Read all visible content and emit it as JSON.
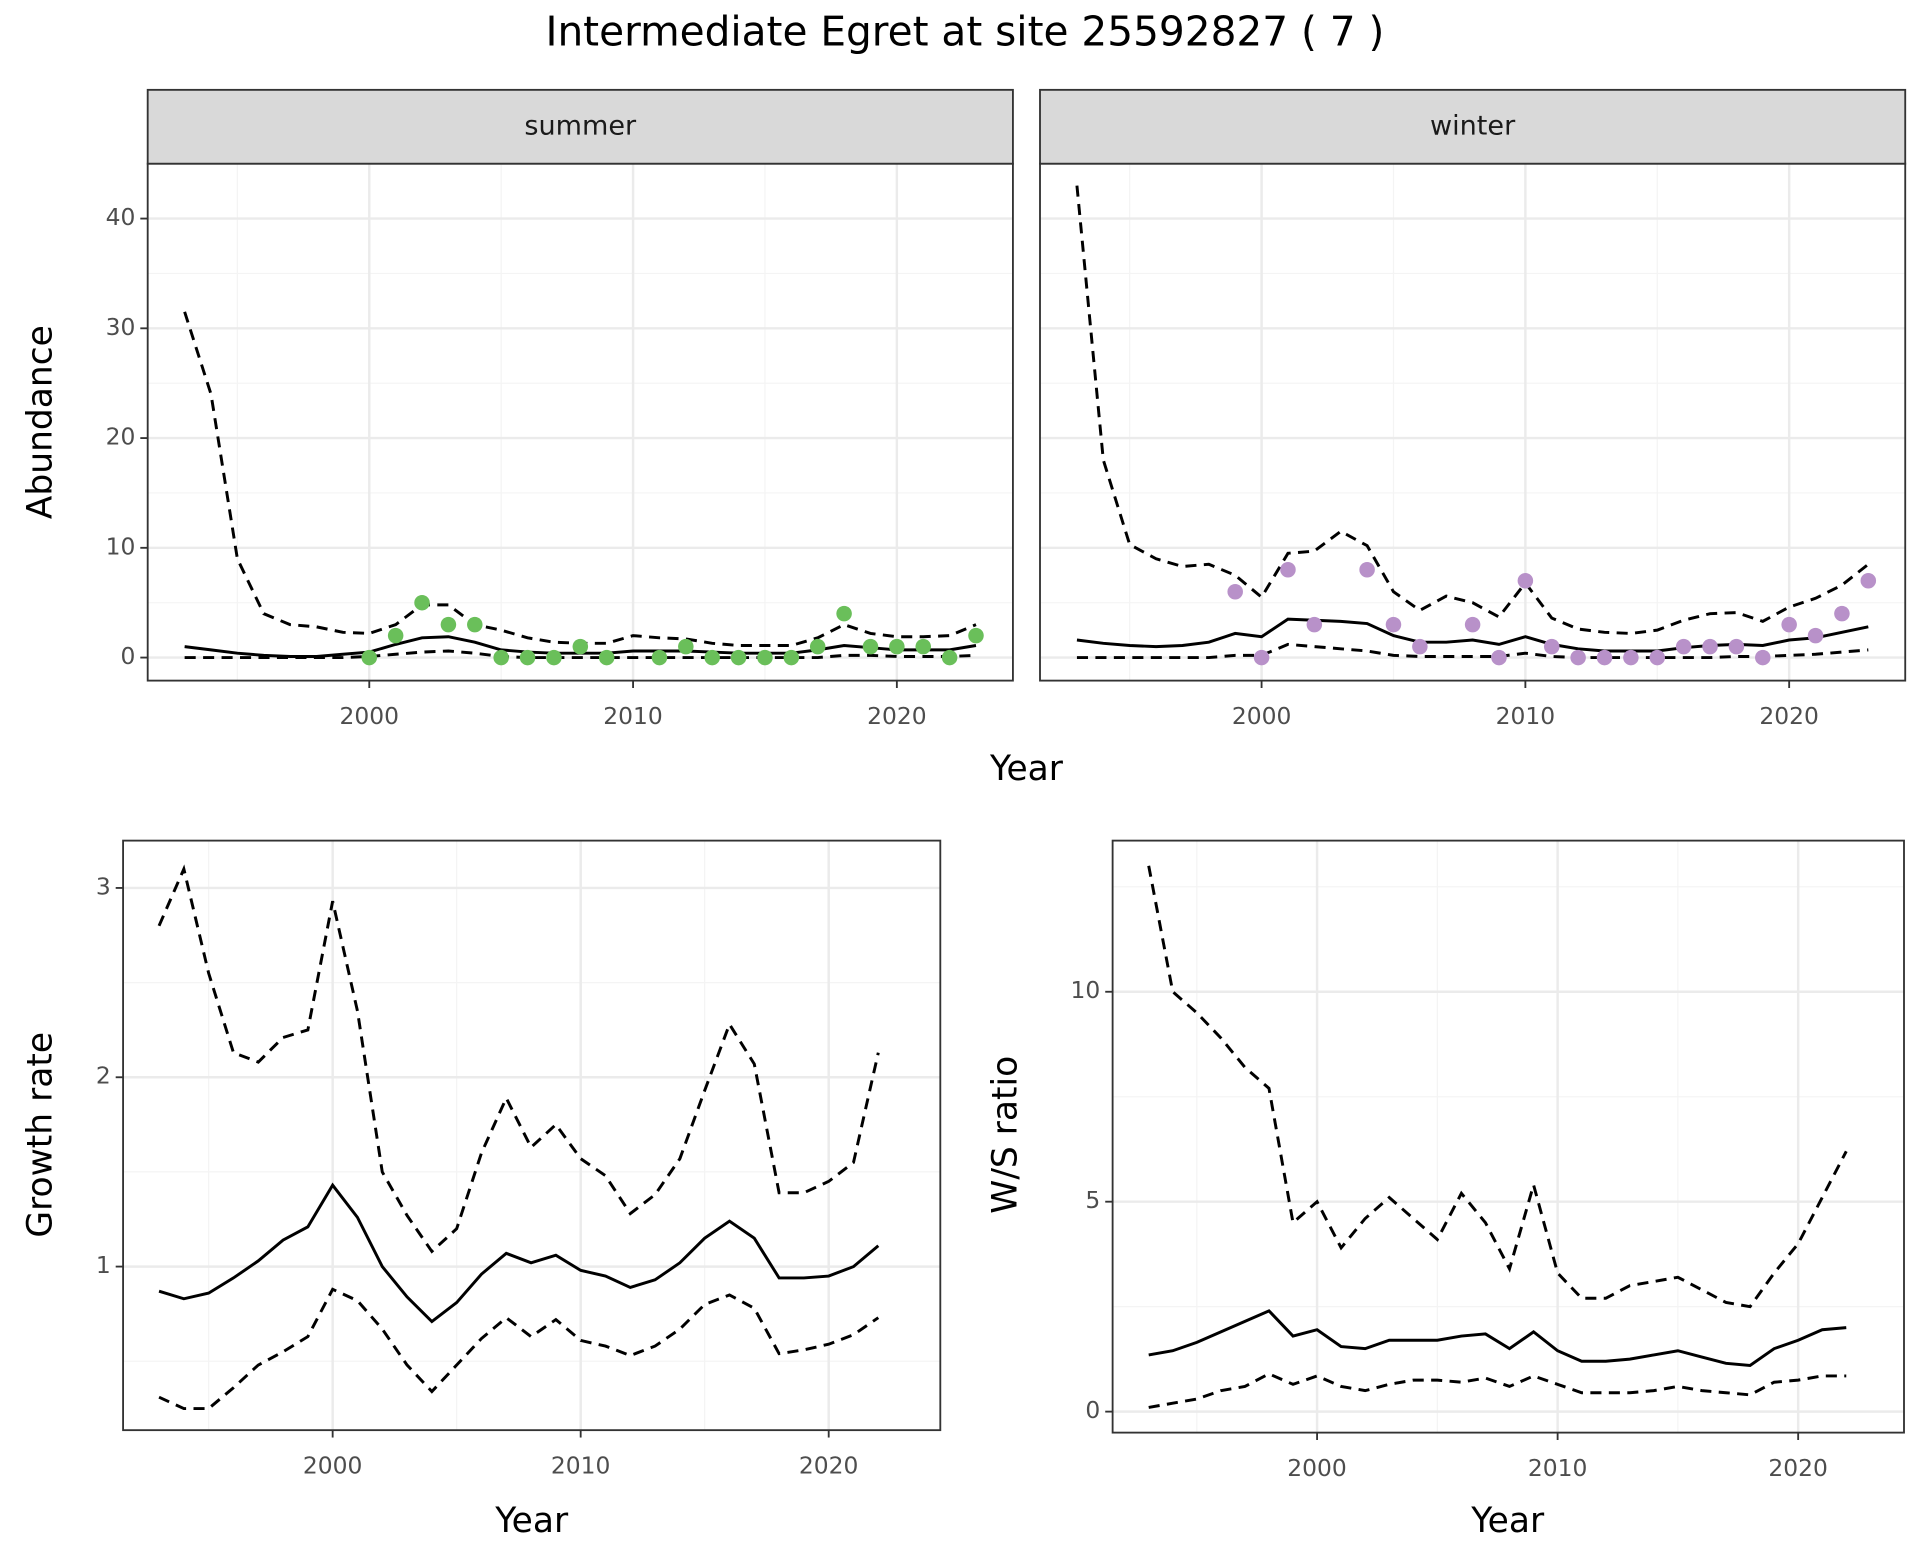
{
  "title": "Intermediate Egret at site 25592827 ( 7 )",
  "chart_data": [
    {
      "type": "line",
      "facet": "summer",
      "xlabel": "Year",
      "ylabel": "Abundance",
      "x": [
        1993,
        1994,
        1995,
        1996,
        1997,
        1998,
        1999,
        2000,
        2001,
        2002,
        2003,
        2004,
        2005,
        2006,
        2007,
        2008,
        2009,
        2010,
        2011,
        2012,
        2013,
        2014,
        2015,
        2016,
        2017,
        2018,
        2019,
        2020,
        2021,
        2022,
        2023
      ],
      "xlim": [
        1991.6,
        2024.4
      ],
      "xticks": [
        2000,
        2010,
        2020
      ],
      "ylim": [
        -2.1,
        45
      ],
      "yticks": [
        0,
        10,
        20,
        30,
        40
      ],
      "ytick_labels": true,
      "grid": true,
      "series": [
        {
          "color": "#000000",
          "dashed": true,
          "values": [
            31.5,
            24,
            9,
            4,
            3,
            2.8,
            2.3,
            2.2,
            3,
            4.8,
            4.8,
            3,
            2.5,
            1.8,
            1.4,
            1.3,
            1.3,
            2,
            1.8,
            1.7,
            1.3,
            1.1,
            1.1,
            1.1,
            1.8,
            3,
            2.2,
            1.9,
            1.9,
            2,
            3
          ]
        },
        {
          "color": "#000000",
          "dashed": false,
          "values": [
            1,
            0.7,
            0.4,
            0.2,
            0.1,
            0.1,
            0.3,
            0.5,
            1.2,
            1.8,
            1.9,
            1.4,
            0.7,
            0.5,
            0.4,
            0.4,
            0.4,
            0.6,
            0.6,
            0.6,
            0.5,
            0.4,
            0.4,
            0.4,
            0.7,
            1.1,
            0.9,
            0.7,
            0.7,
            0.7,
            1.1
          ]
        },
        {
          "color": "#000000",
          "dashed": true,
          "values": [
            0,
            0,
            0,
            0,
            0,
            0,
            0,
            0.1,
            0.3,
            0.5,
            0.6,
            0.4,
            0.1,
            0,
            0,
            0,
            0,
            0,
            0,
            0,
            0,
            0,
            0,
            0,
            0,
            0.2,
            0.2,
            0.1,
            0.1,
            0.1,
            0.2
          ]
        },
        {
          "type": "scatter",
          "color": "#6abf5a",
          "x": [
            2000,
            2001,
            2002,
            2003,
            2004,
            2005,
            2006,
            2007,
            2008,
            2009,
            2011,
            2012,
            2013,
            2014,
            2015,
            2016,
            2017,
            2018,
            2019,
            2020,
            2021,
            2022,
            2023
          ],
          "values": [
            0,
            2,
            5,
            3,
            3,
            0,
            0,
            0,
            1,
            0,
            0,
            1,
            0,
            0,
            0,
            0,
            1,
            4,
            1,
            1,
            1,
            0,
            2
          ]
        }
      ]
    },
    {
      "type": "line",
      "facet": "winter",
      "x": [
        1993,
        1994,
        1995,
        1996,
        1997,
        1998,
        1999,
        2000,
        2001,
        2002,
        2003,
        2004,
        2005,
        2006,
        2007,
        2008,
        2009,
        2010,
        2011,
        2012,
        2013,
        2014,
        2015,
        2016,
        2017,
        2018,
        2019,
        2020,
        2021,
        2022,
        2023
      ],
      "xlim": [
        1991.6,
        2024.4
      ],
      "xticks": [
        2000,
        2010,
        2020
      ],
      "ylim": [
        -2.1,
        45
      ],
      "yticks": [
        0,
        10,
        20,
        30,
        40
      ],
      "ytick_labels": false,
      "grid": true,
      "series": [
        {
          "color": "#000000",
          "dashed": true,
          "values": [
            43,
            18,
            10.3,
            9,
            8.3,
            8.5,
            7.5,
            5.5,
            9.5,
            9.7,
            11.5,
            10.2,
            6,
            4.3,
            5.6,
            5,
            3.7,
            6.8,
            3.6,
            2.6,
            2.3,
            2.2,
            2.5,
            3.4,
            4,
            4.1,
            3.3,
            4.6,
            5.4,
            6.6,
            8.5
          ]
        },
        {
          "color": "#000000",
          "dashed": false,
          "values": [
            1.6,
            1.3,
            1.1,
            1,
            1.1,
            1.4,
            2.2,
            1.9,
            3.5,
            3.4,
            3.3,
            3.1,
            2,
            1.4,
            1.4,
            1.6,
            1.2,
            1.9,
            1.2,
            0.8,
            0.6,
            0.6,
            0.6,
            0.9,
            1.1,
            1.2,
            1.1,
            1.6,
            1.8,
            2.3,
            2.8
          ]
        },
        {
          "color": "#000000",
          "dashed": true,
          "values": [
            0,
            0,
            0,
            0,
            0,
            0,
            0.2,
            0.2,
            1.2,
            1,
            0.8,
            0.6,
            0.2,
            0.1,
            0.1,
            0.1,
            0.1,
            0.4,
            0.1,
            0,
            0,
            0,
            0,
            0,
            0,
            0.1,
            0.1,
            0.2,
            0.3,
            0.5,
            0.7
          ]
        },
        {
          "type": "scatter",
          "color": "#b891c9",
          "x": [
            1999,
            2000,
            2001,
            2002,
            2004,
            2005,
            2006,
            2008,
            2009,
            2010,
            2011,
            2012,
            2013,
            2014,
            2015,
            2016,
            2017,
            2018,
            2019,
            2020,
            2021,
            2022,
            2023
          ],
          "values": [
            6,
            0,
            8,
            3,
            8,
            3,
            1,
            3,
            0,
            7,
            1,
            0,
            0,
            0,
            0,
            1,
            1,
            1,
            0,
            3,
            2,
            4,
            7
          ]
        }
      ]
    },
    {
      "type": "line",
      "xlabel": "Year",
      "ylabel": "Growth rate",
      "x": [
        1993,
        1994,
        1995,
        1996,
        1997,
        1998,
        1999,
        2000,
        2001,
        2002,
        2003,
        2004,
        2005,
        2006,
        2007,
        2008,
        2009,
        2010,
        2011,
        2012,
        2013,
        2014,
        2015,
        2016,
        2017,
        2018,
        2019,
        2020,
        2021,
        2022
      ],
      "xlim": [
        1991.55,
        2024.5
      ],
      "xticks": [
        2000,
        2010,
        2020
      ],
      "ylim": [
        0.136,
        3.25
      ],
      "yticks": [
        1,
        2,
        3
      ],
      "ytick_labels": true,
      "grid": true,
      "series": [
        {
          "color": "#000000",
          "dashed": true,
          "values": [
            2.8,
            3.1,
            2.55,
            2.13,
            2.08,
            2.21,
            2.25,
            2.93,
            2.35,
            1.5,
            1.27,
            1.08,
            1.2,
            1.6,
            1.89,
            1.63,
            1.75,
            1.57,
            1.48,
            1.28,
            1.38,
            1.57,
            1.93,
            2.28,
            2.07,
            1.39,
            1.39,
            1.45,
            1.55,
            2.13
          ]
        },
        {
          "color": "#000000",
          "dashed": false,
          "values": [
            0.87,
            0.83,
            0.86,
            0.94,
            1.03,
            1.14,
            1.21,
            1.43,
            1.26,
            1,
            0.84,
            0.71,
            0.81,
            0.96,
            1.07,
            1.02,
            1.06,
            0.98,
            0.95,
            0.89,
            0.93,
            1.02,
            1.15,
            1.24,
            1.15,
            0.94,
            0.94,
            0.95,
            1,
            1.11
          ]
        },
        {
          "color": "#000000",
          "dashed": true,
          "values": [
            0.31,
            0.25,
            0.25,
            0.36,
            0.48,
            0.55,
            0.63,
            0.88,
            0.82,
            0.67,
            0.48,
            0.34,
            0.48,
            0.62,
            0.73,
            0.63,
            0.72,
            0.61,
            0.58,
            0.53,
            0.58,
            0.67,
            0.8,
            0.85,
            0.78,
            0.54,
            0.56,
            0.59,
            0.64,
            0.73
          ]
        }
      ]
    },
    {
      "type": "line",
      "xlabel": "Year",
      "ylabel": "W/S ratio",
      "x": [
        1993,
        1994,
        1995,
        1996,
        1997,
        1998,
        1999,
        2000,
        2001,
        2002,
        2003,
        2004,
        2005,
        2006,
        2007,
        2008,
        2009,
        2010,
        2011,
        2012,
        2013,
        2014,
        2015,
        2016,
        2017,
        2018,
        2019,
        2020,
        2021,
        2022
      ],
      "xlim": [
        1991.5,
        2024.4
      ],
      "xticks": [
        2000,
        2010,
        2020
      ],
      "ylim": [
        -0.5,
        13.6
      ],
      "yticks": [
        0,
        5,
        10
      ],
      "ytick_labels": true,
      "grid": true,
      "series": [
        {
          "color": "#000000",
          "dashed": true,
          "values": [
            13,
            10,
            9.5,
            8.9,
            8.2,
            7.7,
            4.5,
            5,
            3.9,
            4.6,
            5.1,
            4.6,
            4.1,
            5.2,
            4.5,
            3.4,
            5.4,
            3.3,
            2.7,
            2.7,
            3,
            3.1,
            3.2,
            2.9,
            2.6,
            2.5,
            3.3,
            4,
            5.1,
            6.2
          ]
        },
        {
          "color": "#000000",
          "dashed": false,
          "values": [
            1.35,
            1.45,
            1.65,
            1.9,
            2.15,
            2.4,
            1.8,
            1.95,
            1.55,
            1.5,
            1.7,
            1.7,
            1.7,
            1.8,
            1.85,
            1.5,
            1.9,
            1.45,
            1.2,
            1.2,
            1.25,
            1.35,
            1.45,
            1.3,
            1.15,
            1.1,
            1.5,
            1.7,
            1.95,
            2
          ]
        },
        {
          "color": "#000000",
          "dashed": true,
          "values": [
            0.1,
            0.2,
            0.3,
            0.5,
            0.6,
            0.9,
            0.65,
            0.85,
            0.6,
            0.5,
            0.65,
            0.75,
            0.75,
            0.7,
            0.8,
            0.6,
            0.85,
            0.65,
            0.45,
            0.45,
            0.45,
            0.5,
            0.6,
            0.5,
            0.45,
            0.4,
            0.7,
            0.75,
            0.85,
            0.85
          ]
        }
      ]
    }
  ]
}
